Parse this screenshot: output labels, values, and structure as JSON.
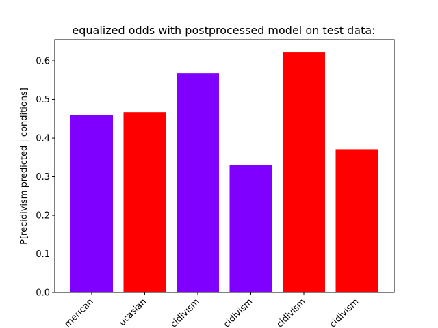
{
  "chart_data": {
    "type": "bar",
    "title": "equalized odds with postprocessed model on test data:",
    "xlabel": "",
    "ylabel": "P[recidivism predicted | conditions]",
    "categories": [
      "African-American",
      "Caucasian",
      "recidivism",
      "no recidivism",
      "recidivism",
      "no recidivism"
    ],
    "tick_labels_visible": [
      "merican",
      "ucasian",
      "cidivism",
      "cidivism",
      "cidivism",
      "cidivism"
    ],
    "values": [
      0.46,
      0.467,
      0.568,
      0.33,
      0.623,
      0.371
    ],
    "colors": [
      "#7f00ff",
      "#ff0000",
      "#7f00ff",
      "#7f00ff",
      "#ff0000",
      "#ff0000"
    ],
    "ylim": [
      0,
      0.655
    ],
    "yticks": [
      0.0,
      0.1,
      0.2,
      0.3,
      0.4,
      0.5,
      0.6
    ],
    "ytick_labels": [
      "0.0",
      "0.1",
      "0.2",
      "0.3",
      "0.4",
      "0.5",
      "0.6"
    ],
    "grid": false,
    "legend": "none"
  }
}
